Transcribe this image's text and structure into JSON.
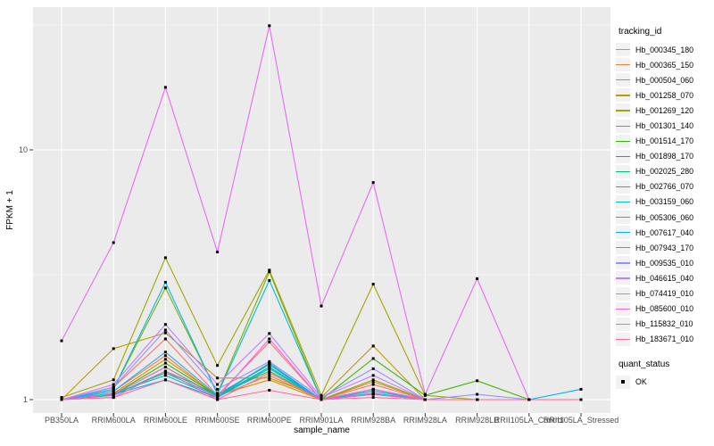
{
  "figure": {
    "panel_bg": "#EBEBEB",
    "grid_color": "#FFFFFF",
    "tick_mark_color": "#333333",
    "tick_label_color": "#4D4D4D"
  },
  "chart_data": {
    "type": "line",
    "xlabel": "sample_name",
    "ylabel": "FPKM + 1",
    "y_scale": "log10",
    "y_ticks": [
      1,
      10
    ],
    "y_tick_labels": [
      "1",
      "10"
    ],
    "y_minor_gridlines": [
      3.162,
      31.62
    ],
    "ylim_approx": [
      0.95,
      36
    ],
    "grid": true,
    "legend_position": "right",
    "point_marker": "small-black-square",
    "categories": [
      "PB350LA",
      "RRIM600LA",
      "RRIM600LE",
      "RRIM600SE",
      "RRIM600PE",
      "RRIM901LA",
      "RRIM928BA",
      "RRIM928LA",
      "RRIM928LB",
      "RRII105LA_Control",
      "RRII105LA_Stressed"
    ],
    "series": [
      {
        "name": "Hb_000345_180",
        "color": "#F8766D",
        "values": [
          1.0,
          1.12,
          1.75,
          1.04,
          1.7,
          1.0,
          1.15,
          1.0,
          1.0,
          1.0,
          1.0
        ]
      },
      {
        "name": "Hb_000365_150",
        "color": "#EA8331",
        "values": [
          1.0,
          1.08,
          1.5,
          1.03,
          1.25,
          1.0,
          1.18,
          1.0,
          1.0,
          1.0,
          1.0
        ]
      },
      {
        "name": "Hb_000504_060",
        "color": "#D89000",
        "values": [
          1.0,
          1.06,
          1.45,
          1.04,
          1.2,
          1.0,
          1.1,
          1.0,
          1.0,
          1.0,
          1.0
        ]
      },
      {
        "name": "Hb_001258_070",
        "color": "#C09B00",
        "values": [
          1.0,
          1.6,
          1.85,
          1.22,
          1.22,
          1.02,
          1.64,
          1.0,
          1.0,
          1.0,
          1.0
        ]
      },
      {
        "name": "Hb_001269_120",
        "color": "#A3A500",
        "values": [
          1.02,
          1.2,
          3.7,
          1.37,
          3.3,
          1.04,
          2.9,
          1.04,
          1.0,
          1.0,
          1.0
        ]
      },
      {
        "name": "Hb_001301_140",
        "color": "#7CAE00",
        "values": [
          1.0,
          1.1,
          2.8,
          1.06,
          3.25,
          1.0,
          1.2,
          1.0,
          1.0,
          1.0,
          1.0
        ]
      },
      {
        "name": "Hb_001514_170",
        "color": "#39B600",
        "values": [
          1.0,
          1.05,
          1.4,
          1.04,
          1.3,
          1.0,
          1.46,
          1.04,
          1.19,
          1.0,
          1.0
        ]
      },
      {
        "name": "Hb_001898_170",
        "color": "#00BB4E",
        "values": [
          1.0,
          1.05,
          1.35,
          1.03,
          1.4,
          1.0,
          1.1,
          1.0,
          1.0,
          1.0,
          1.0
        ]
      },
      {
        "name": "Hb_002025_280",
        "color": "#00BF7D",
        "values": [
          1.0,
          1.04,
          1.3,
          1.05,
          1.38,
          1.0,
          1.08,
          1.0,
          1.0,
          1.0,
          1.0
        ]
      },
      {
        "name": "Hb_002766_070",
        "color": "#00C1A3",
        "values": [
          1.0,
          1.05,
          1.28,
          1.03,
          1.35,
          1.0,
          1.06,
          1.0,
          1.0,
          1.0,
          1.0
        ]
      },
      {
        "name": "Hb_003159_060",
        "color": "#00BFC4",
        "values": [
          1.0,
          1.06,
          1.25,
          1.02,
          1.33,
          1.0,
          1.05,
          1.0,
          1.0,
          1.0,
          1.0
        ]
      },
      {
        "name": "Hb_005306_060",
        "color": "#00BAE0",
        "values": [
          1.0,
          1.1,
          2.95,
          1.05,
          3.0,
          1.0,
          1.1,
          1.0,
          1.0,
          1.0,
          1.0
        ]
      },
      {
        "name": "Hb_007617_040",
        "color": "#00B0F6",
        "values": [
          1.0,
          1.05,
          1.2,
          1.02,
          1.35,
          1.0,
          1.05,
          1.0,
          1.0,
          1.0,
          1.1
        ]
      },
      {
        "name": "Hb_007943_170",
        "color": "#35A2FF",
        "values": [
          1.0,
          1.08,
          1.55,
          1.04,
          1.4,
          1.0,
          1.08,
          1.0,
          1.0,
          1.0,
          1.0
        ]
      },
      {
        "name": "Hb_009535_010",
        "color": "#9590FF",
        "values": [
          1.0,
          1.12,
          1.9,
          1.1,
          1.42,
          1.02,
          1.33,
          1.0,
          1.05,
          1.0,
          1.0
        ]
      },
      {
        "name": "Hb_046615_040",
        "color": "#C77CFF",
        "values": [
          1.0,
          1.15,
          2.0,
          1.15,
          1.84,
          1.02,
          1.25,
          1.0,
          1.0,
          1.0,
          1.0
        ]
      },
      {
        "name": "Hb_074419_010",
        "color": "#E76BF3",
        "values": [
          1.72,
          4.25,
          17.8,
          3.9,
          31.4,
          2.37,
          7.4,
          1.05,
          3.05,
          1.0,
          1.0
        ]
      },
      {
        "name": "Hb_085600_010",
        "color": "#FA62DB",
        "values": [
          1.0,
          1.05,
          1.35,
          1.02,
          1.75,
          1.0,
          1.1,
          1.0,
          1.0,
          1.0,
          1.0
        ]
      },
      {
        "name": "Hb_115832_010",
        "color": "#FF62BC",
        "values": [
          1.0,
          1.02,
          1.3,
          1.0,
          1.28,
          1.0,
          1.05,
          1.0,
          1.0,
          1.0,
          1.0
        ]
      },
      {
        "name": "Hb_183671_010",
        "color": "#FF6A98",
        "values": [
          1.0,
          1.02,
          1.2,
          1.0,
          1.09,
          1.0,
          1.02,
          1.0,
          1.0,
          1.0,
          1.0
        ]
      }
    ]
  },
  "legend": {
    "title": "tracking_id"
  },
  "legend2": {
    "title": "quant_status",
    "items": [
      {
        "label": "OK",
        "marker": "black-square"
      }
    ]
  }
}
